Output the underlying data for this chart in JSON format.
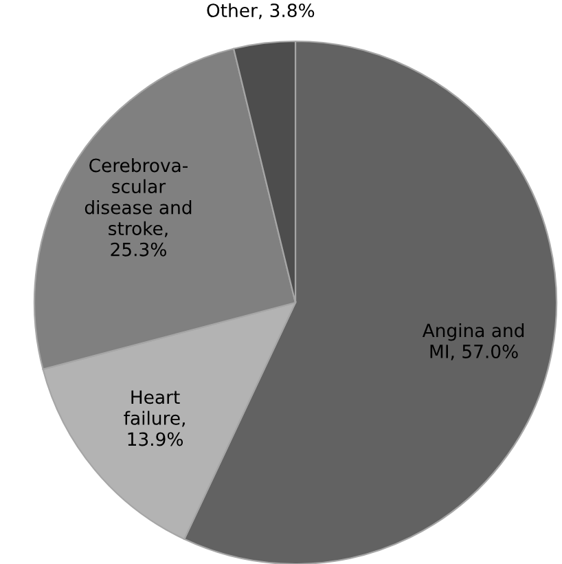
{
  "chart_data": {
    "type": "pie",
    "categories": [
      "Angina and\nMI",
      "Heart\nfailure",
      "Cerebrova-\nscular\ndisease and\nstroke",
      "Other"
    ],
    "values": [
      57.0,
      13.9,
      25.3,
      3.8
    ],
    "value_labels": [
      ", 57.0%",
      ",\n13.9%",
      ",\n25.3%",
      ", 3.8%"
    ],
    "colors": [
      "#626262",
      "#b3b3b3",
      "#808080",
      "#4d4d4d"
    ]
  }
}
